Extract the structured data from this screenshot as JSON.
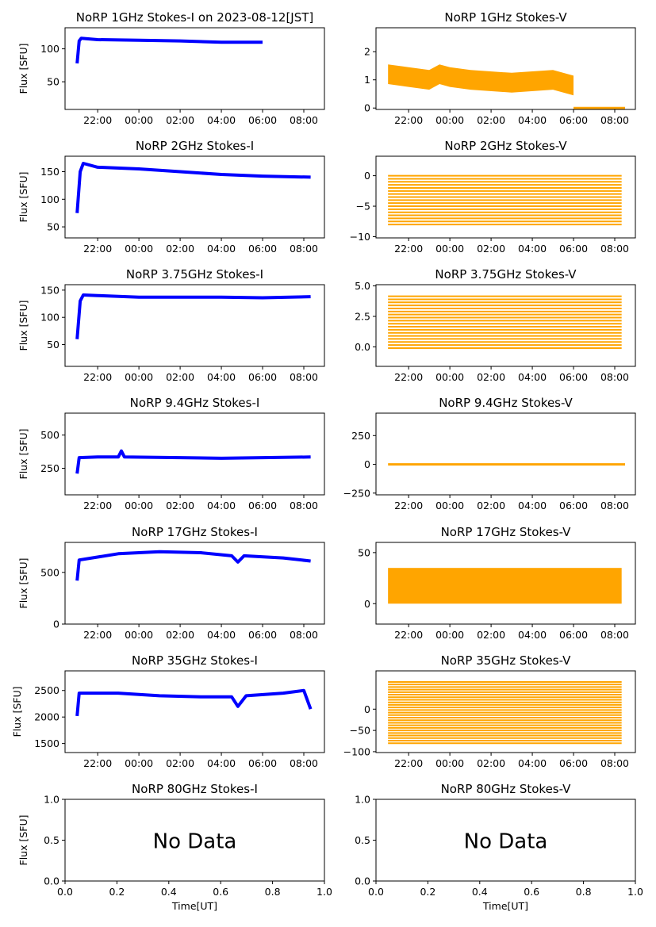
{
  "figure": {
    "time_label": "Time[UT]",
    "nodata_text": "No Data"
  },
  "colors": {
    "stokes_i": "#0000ff",
    "stokes_v": "#ffa500"
  },
  "chart_data": [
    {
      "type": "scatter",
      "title": "NoRP 1GHz Stokes-I on 2023-08-12[JST]",
      "ylabel": "Flux [SFU]",
      "xlim": [
        "2023-08-11 20:25",
        "2023-08-12 09:00"
      ],
      "ylim": [
        8,
        132
      ],
      "yticks": [
        50,
        100
      ],
      "xticks": [
        "22:00",
        "00:00",
        "02:00",
        "04:00",
        "06:00",
        "08:00"
      ],
      "series": [
        {
          "kind": "I",
          "x_range": [
            "2023-08-11 21:00",
            "2023-08-12 06:00"
          ],
          "values": [
            [
              0,
              78
            ],
            [
              0.1,
              112
            ],
            [
              0.2,
              116
            ],
            [
              1,
              114
            ],
            [
              3,
              113
            ],
            [
              5,
              112
            ],
            [
              7,
              110
            ],
            [
              9,
              110
            ]
          ]
        }
      ]
    },
    {
      "type": "scatter",
      "title": "NoRP 1GHz Stokes-V",
      "ylabel": "",
      "xlim": [
        "2023-08-11 20:25",
        "2023-08-12 09:00"
      ],
      "ylim": [
        -0.05,
        2.85
      ],
      "yticks": [
        0,
        1,
        2
      ],
      "xticks": [
        "22:00",
        "00:00",
        "02:00",
        "04:00",
        "06:00",
        "08:00"
      ],
      "series": [
        {
          "kind": "V",
          "x_range": [
            "2023-08-11 21:00",
            "2023-08-12 06:00"
          ],
          "values": [
            [
              0,
              1.2
            ],
            [
              1,
              1.1
            ],
            [
              2,
              1.0
            ],
            [
              2.5,
              1.2
            ],
            [
              3,
              1.1
            ],
            [
              4,
              1.0
            ],
            [
              6,
              0.9
            ],
            [
              8,
              1.0
            ],
            [
              9,
              0.8
            ]
          ],
          "spread": 0.35
        },
        {
          "kind": "line",
          "x_range": [
            "2023-08-12 06:00",
            "2023-08-12 08:30"
          ],
          "values": [
            [
              0,
              0
            ],
            [
              2.5,
              0
            ]
          ]
        }
      ]
    },
    {
      "type": "scatter",
      "title": "NoRP 2GHz Stokes-I",
      "ylabel": "Flux [SFU]",
      "xlim": [
        "2023-08-11 20:25",
        "2023-08-12 09:00"
      ],
      "ylim": [
        30,
        178
      ],
      "yticks": [
        50,
        100,
        150
      ],
      "xticks": [
        "22:00",
        "00:00",
        "02:00",
        "04:00",
        "06:00",
        "08:00"
      ],
      "series": [
        {
          "kind": "I",
          "x_range": [
            "2023-08-11 21:00",
            "2023-08-12 08:20"
          ],
          "values": [
            [
              0,
              75
            ],
            [
              0.15,
              150
            ],
            [
              0.3,
              165
            ],
            [
              1,
              158
            ],
            [
              3,
              155
            ],
            [
              5,
              150
            ],
            [
              7,
              145
            ],
            [
              9,
              142
            ],
            [
              11.33,
              140
            ]
          ]
        }
      ]
    },
    {
      "type": "scatter",
      "title": "NoRP 2GHz Stokes-V",
      "ylabel": "",
      "xlim": [
        "2023-08-11 20:25",
        "2023-08-12 09:00"
      ],
      "ylim": [
        -10.2,
        3.2
      ],
      "yticks": [
        0,
        -5,
        -10
      ],
      "xticks": [
        "22:00",
        "00:00",
        "02:00",
        "04:00",
        "06:00",
        "08:00"
      ],
      "series": [
        {
          "kind": "bands",
          "x_range": [
            "2023-08-11 21:00",
            "2023-08-12 08:20"
          ],
          "from": -8,
          "to": 0,
          "step": 0.5
        }
      ]
    },
    {
      "type": "scatter",
      "title": "NoRP 3.75GHz Stokes-I",
      "ylabel": "Flux [SFU]",
      "xlim": [
        "2023-08-11 20:25",
        "2023-08-12 09:00"
      ],
      "ylim": [
        10,
        160
      ],
      "yticks": [
        50,
        100,
        150
      ],
      "xticks": [
        "22:00",
        "00:00",
        "02:00",
        "04:00",
        "06:00",
        "08:00"
      ],
      "series": [
        {
          "kind": "I",
          "x_range": [
            "2023-08-11 21:00",
            "2023-08-12 08:20"
          ],
          "values": [
            [
              0,
              60
            ],
            [
              0.15,
              130
            ],
            [
              0.3,
              141
            ],
            [
              1,
              140
            ],
            [
              3,
              137
            ],
            [
              5,
              137
            ],
            [
              7,
              137
            ],
            [
              9,
              136
            ],
            [
              11.33,
              138
            ]
          ]
        }
      ]
    },
    {
      "type": "scatter",
      "title": "NoRP 3.75GHz Stokes-V",
      "ylabel": "",
      "xlim": [
        "2023-08-11 20:25",
        "2023-08-12 09:00"
      ],
      "ylim": [
        -1.6,
        5.1
      ],
      "yticks": [
        0.0,
        2.5,
        5.0
      ],
      "xticks": [
        "22:00",
        "00:00",
        "02:00",
        "04:00",
        "06:00",
        "08:00"
      ],
      "series": [
        {
          "kind": "bands",
          "x_range": [
            "2023-08-11 21:00",
            "2023-08-12 08:20"
          ],
          "from": -0.1,
          "to": 4.2,
          "step": 0.25
        }
      ]
    },
    {
      "type": "scatter",
      "title": "NoRP 9.4GHz Stokes-I",
      "ylabel": "Flux [SFU]",
      "xlim": [
        "2023-08-11 20:25",
        "2023-08-12 09:00"
      ],
      "ylim": [
        50,
        665
      ],
      "yticks": [
        250,
        500
      ],
      "xticks": [
        "22:00",
        "00:00",
        "02:00",
        "04:00",
        "06:00",
        "08:00"
      ],
      "series": [
        {
          "kind": "I",
          "x_range": [
            "2023-08-11 21:00",
            "2023-08-12 08:20"
          ],
          "values": [
            [
              0,
              210
            ],
            [
              0.1,
              330
            ],
            [
              1,
              335
            ],
            [
              2,
              335
            ],
            [
              2.15,
              380
            ],
            [
              2.3,
              335
            ],
            [
              5,
              330
            ],
            [
              7,
              325
            ],
            [
              9,
              330
            ],
            [
              11.33,
              335
            ]
          ]
        }
      ]
    },
    {
      "type": "scatter",
      "title": "NoRP 9.4GHz Stokes-V",
      "ylabel": "",
      "xlim": [
        "2023-08-11 20:25",
        "2023-08-12 09:00"
      ],
      "ylim": [
        -265,
        445
      ],
      "yticks": [
        250,
        0,
        -250
      ],
      "xticks": [
        "22:00",
        "00:00",
        "02:00",
        "04:00",
        "06:00",
        "08:00"
      ],
      "series": [
        {
          "kind": "line",
          "x_range": [
            "2023-08-11 21:00",
            "2023-08-12 08:30"
          ],
          "values": [
            [
              0,
              0
            ],
            [
              11.5,
              0
            ]
          ]
        }
      ]
    },
    {
      "type": "scatter",
      "title": "NoRP 17GHz Stokes-I",
      "ylabel": "Flux [SFU]",
      "xlim": [
        "2023-08-11 20:25",
        "2023-08-12 09:00"
      ],
      "ylim": [
        0,
        790
      ],
      "yticks": [
        0,
        500
      ],
      "xticks": [
        "22:00",
        "00:00",
        "02:00",
        "04:00",
        "06:00",
        "08:00"
      ],
      "series": [
        {
          "kind": "I",
          "x_range": [
            "2023-08-11 21:00",
            "2023-08-12 08:20"
          ],
          "values": [
            [
              0,
              420
            ],
            [
              0.1,
              620
            ],
            [
              2,
              680
            ],
            [
              4,
              700
            ],
            [
              6,
              690
            ],
            [
              7.5,
              660
            ],
            [
              7.8,
              600
            ],
            [
              8.1,
              660
            ],
            [
              10,
              640
            ],
            [
              11.33,
              610
            ]
          ]
        }
      ]
    },
    {
      "type": "scatter",
      "title": "NoRP 17GHz Stokes-V",
      "ylabel": "",
      "xlim": [
        "2023-08-11 20:25",
        "2023-08-12 09:00"
      ],
      "ylim": [
        -20,
        60
      ],
      "yticks": [
        0,
        50
      ],
      "xticks": [
        "22:00",
        "00:00",
        "02:00",
        "04:00",
        "06:00",
        "08:00"
      ],
      "series": [
        {
          "kind": "band",
          "x_range": [
            "2023-08-11 21:00",
            "2023-08-12 08:20"
          ],
          "from": 0,
          "to": 35
        }
      ]
    },
    {
      "type": "scatter",
      "title": "NoRP 35GHz Stokes-I",
      "ylabel": "Flux [SFU]",
      "xlim": [
        "2023-08-11 20:25",
        "2023-08-12 09:00"
      ],
      "ylim": [
        1330,
        2870
      ],
      "yticks": [
        1500,
        2000,
        2500
      ],
      "xticks": [
        "22:00",
        "00:00",
        "02:00",
        "04:00",
        "06:00",
        "08:00"
      ],
      "series": [
        {
          "kind": "I",
          "x_range": [
            "2023-08-11 21:00",
            "2023-08-12 08:20"
          ],
          "values": [
            [
              0,
              2020
            ],
            [
              0.1,
              2450
            ],
            [
              2,
              2450
            ],
            [
              4,
              2400
            ],
            [
              6,
              2380
            ],
            [
              7.5,
              2380
            ],
            [
              7.8,
              2200
            ],
            [
              8.2,
              2400
            ],
            [
              10,
              2450
            ],
            [
              11,
              2500
            ],
            [
              11.33,
              2150
            ]
          ]
        }
      ]
    },
    {
      "type": "scatter",
      "title": "NoRP 35GHz Stokes-V",
      "ylabel": "",
      "xlim": [
        "2023-08-11 20:25",
        "2023-08-12 09:00"
      ],
      "ylim": [
        -102,
        90
      ],
      "yticks": [
        0,
        -50,
        -100
      ],
      "xticks": [
        "22:00",
        "00:00",
        "02:00",
        "04:00",
        "06:00",
        "08:00"
      ],
      "series": [
        {
          "kind": "bands",
          "x_range": [
            "2023-08-11 21:00",
            "2023-08-12 08:20"
          ],
          "from": -80,
          "to": 65,
          "step": 6
        }
      ]
    },
    {
      "type": "scatter",
      "title": "NoRP 80GHz Stokes-I",
      "ylabel": "Flux [SFU]",
      "nodata": true,
      "xlim": [
        0,
        1
      ],
      "ylim": [
        0,
        1
      ],
      "yticks": [
        0.0,
        0.5,
        1.0
      ],
      "xticks": [
        "0.0",
        "0.2",
        "0.4",
        "0.6",
        "0.8",
        "1.0"
      ],
      "xlabel": "Time[UT]",
      "series": []
    },
    {
      "type": "scatter",
      "title": "NoRP 80GHz Stokes-V",
      "ylabel": "",
      "nodata": true,
      "xlim": [
        0,
        1
      ],
      "ylim": [
        0,
        1
      ],
      "yticks": [
        0.0,
        0.5,
        1.0
      ],
      "xticks": [
        "0.0",
        "0.2",
        "0.4",
        "0.6",
        "0.8",
        "1.0"
      ],
      "xlabel": "Time[UT]",
      "series": []
    }
  ]
}
